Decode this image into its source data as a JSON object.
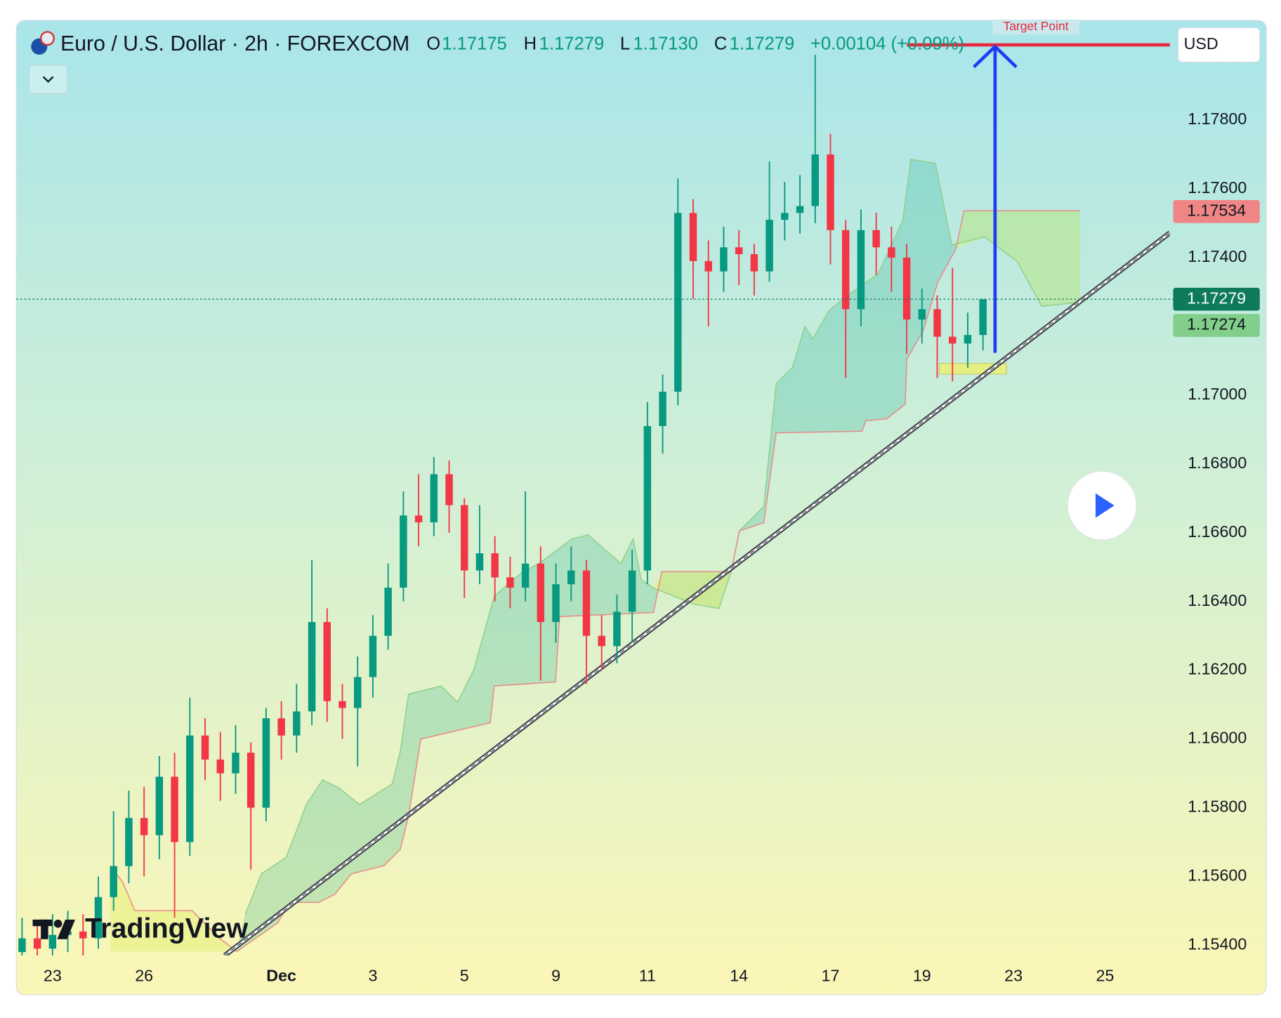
{
  "chart_data": {
    "type": "candlestick",
    "title": "Euro / U.S. Dollar · 2h · FOREXCOM",
    "ohlc_legend": [
      {
        "key": "O",
        "value": "1.17175"
      },
      {
        "key": "H",
        "value": "1.17279"
      },
      {
        "key": "L",
        "value": "1.17130"
      },
      {
        "key": "C",
        "value": "1.17279"
      }
    ],
    "change": "+0.00104 (+0.09%)",
    "currency": "USD",
    "annotation": "Target Point",
    "brand": "TradingView",
    "categories": [
      null,
      null,
      "23",
      null,
      null,
      null,
      null,
      null,
      "26",
      null,
      null,
      null,
      null,
      null,
      null,
      null,
      null,
      "Dec",
      null,
      null,
      null,
      null,
      null,
      "3",
      null,
      null,
      null,
      null,
      null,
      "5",
      null,
      null,
      null,
      null,
      null,
      "9",
      null,
      null,
      null,
      null,
      null,
      "11",
      null,
      null,
      null,
      null,
      null,
      "14",
      null,
      null,
      null,
      null,
      null,
      "17",
      null,
      null,
      null,
      null,
      null,
      "19",
      null,
      null,
      null,
      null,
      null,
      "23",
      null,
      null,
      null,
      null,
      null,
      "25"
    ],
    "open": [
      1.1538,
      1.1542,
      1.1539,
      1.1543,
      1.1544,
      1.1542,
      1.1554,
      1.1563,
      1.1577,
      1.1572,
      1.1589,
      1.157,
      1.1601,
      1.1594,
      1.159,
      1.1596,
      1.158,
      1.1606,
      1.1601,
      1.1608,
      1.1634,
      1.1611,
      1.1609,
      1.1618,
      1.163,
      1.1644,
      1.1665,
      1.1663,
      1.1677,
      1.1668,
      1.1649,
      1.1654,
      1.1647,
      1.1644,
      1.1651,
      1.1634,
      1.1645,
      1.1649,
      1.163,
      1.1627,
      1.1637,
      1.1649,
      1.1691,
      1.1701,
      1.1753,
      1.1739,
      1.1736,
      1.1743,
      1.1741,
      1.1736,
      1.1751,
      1.1753,
      1.1755,
      1.177,
      1.1748,
      1.1725,
      1.1748,
      1.1743,
      1.174,
      1.1722,
      1.1725,
      1.1717,
      1.1715,
      1.17175,
      null,
      null,
      null,
      null,
      null,
      null,
      null,
      null
    ],
    "high": [
      1.1548,
      1.1547,
      1.1549,
      1.155,
      1.1549,
      1.156,
      1.1579,
      1.1585,
      1.1586,
      1.1595,
      1.1596,
      1.1612,
      1.1606,
      1.1602,
      1.1604,
      1.1599,
      1.1609,
      1.1611,
      1.1616,
      1.1652,
      1.1638,
      1.1616,
      1.1624,
      1.1636,
      1.1651,
      1.1672,
      1.1677,
      1.1682,
      1.1681,
      1.167,
      1.1668,
      1.1659,
      1.1653,
      1.1672,
      1.1656,
      1.1651,
      1.1656,
      1.1652,
      1.1636,
      1.1642,
      1.1655,
      1.1698,
      1.1706,
      1.1763,
      1.1757,
      1.1745,
      1.1749,
      1.1748,
      1.1744,
      1.1768,
      1.1762,
      1.1764,
      1.1799,
      1.1776,
      1.1751,
      1.1754,
      1.1753,
      1.1749,
      1.1744,
      1.1731,
      1.1729,
      1.1737,
      1.1724,
      1.17279,
      null,
      null,
      null,
      null,
      null,
      null,
      null,
      null
    ],
    "low": [
      1.1532,
      1.1535,
      1.1536,
      1.1538,
      1.1537,
      1.1539,
      1.155,
      1.1558,
      1.156,
      1.1565,
      1.1548,
      1.1566,
      1.1588,
      1.1582,
      1.1584,
      1.1562,
      1.1576,
      1.1594,
      1.1596,
      1.1604,
      1.1605,
      1.16,
      1.1592,
      1.1612,
      1.1626,
      1.164,
      1.1656,
      1.1659,
      1.166,
      1.1641,
      1.1645,
      1.164,
      1.1638,
      1.164,
      1.1617,
      1.1628,
      1.164,
      1.1616,
      1.162,
      1.1622,
      1.1628,
      1.1645,
      1.1683,
      1.1697,
      1.1728,
      1.172,
      1.173,
      1.1732,
      1.1729,
      1.1733,
      1.1745,
      1.1747,
      1.175,
      1.1738,
      1.1705,
      1.172,
      1.1735,
      1.173,
      1.1712,
      1.1715,
      1.1705,
      1.1704,
      1.1708,
      1.1713,
      null,
      null,
      null,
      null,
      null,
      null,
      null,
      null
    ],
    "close": [
      1.1542,
      1.1539,
      1.1543,
      1.1544,
      1.1542,
      1.1554,
      1.1563,
      1.1577,
      1.1572,
      1.1589,
      1.157,
      1.1601,
      1.1594,
      1.159,
      1.1596,
      1.158,
      1.1606,
      1.1601,
      1.1608,
      1.1634,
      1.1611,
      1.1609,
      1.1618,
      1.163,
      1.1644,
      1.1665,
      1.1663,
      1.1677,
      1.1668,
      1.1649,
      1.1654,
      1.1647,
      1.1644,
      1.1651,
      1.1634,
      1.1645,
      1.1649,
      1.163,
      1.1627,
      1.1637,
      1.1649,
      1.1691,
      1.1701,
      1.1753,
      1.1739,
      1.1736,
      1.1743,
      1.1741,
      1.1736,
      1.1751,
      1.1753,
      1.1755,
      1.177,
      1.1748,
      1.1725,
      1.1748,
      1.1743,
      1.174,
      1.1722,
      1.1725,
      1.1717,
      1.1715,
      1.17175,
      1.17279,
      null,
      null,
      null,
      null,
      null,
      null,
      null,
      null
    ],
    "up_color": "#089981",
    "down_color": "#f23645",
    "ylim": [
      1.1537,
      1.1809
    ],
    "yticks": [
      {
        "value": 1.154,
        "label": "1.15400"
      },
      {
        "value": 1.156,
        "label": "1.15600"
      },
      {
        "value": 1.158,
        "label": "1.15800"
      },
      {
        "value": 1.16,
        "label": "1.16000"
      },
      {
        "value": 1.162,
        "label": "1.16200"
      },
      {
        "value": 1.164,
        "label": "1.16400"
      },
      {
        "value": 1.166,
        "label": "1.16600"
      },
      {
        "value": 1.168,
        "label": "1.16800"
      },
      {
        "value": 1.17,
        "label": "1.17000"
      },
      {
        "value": 1.172,
        "label": "1.17200"
      },
      {
        "value": 1.174,
        "label": "1.17400"
      },
      {
        "value": 1.176,
        "label": "1.17600"
      },
      {
        "value": 1.178,
        "label": "1.17800"
      }
    ],
    "grid": false,
    "markers": [
      {
        "value": 1.17534,
        "color": "#ef8585"
      },
      {
        "value": 1.17279,
        "color": "#0e7a5c"
      },
      {
        "value": 1.17274,
        "color": "#81cf8b"
      }
    ]
  }
}
